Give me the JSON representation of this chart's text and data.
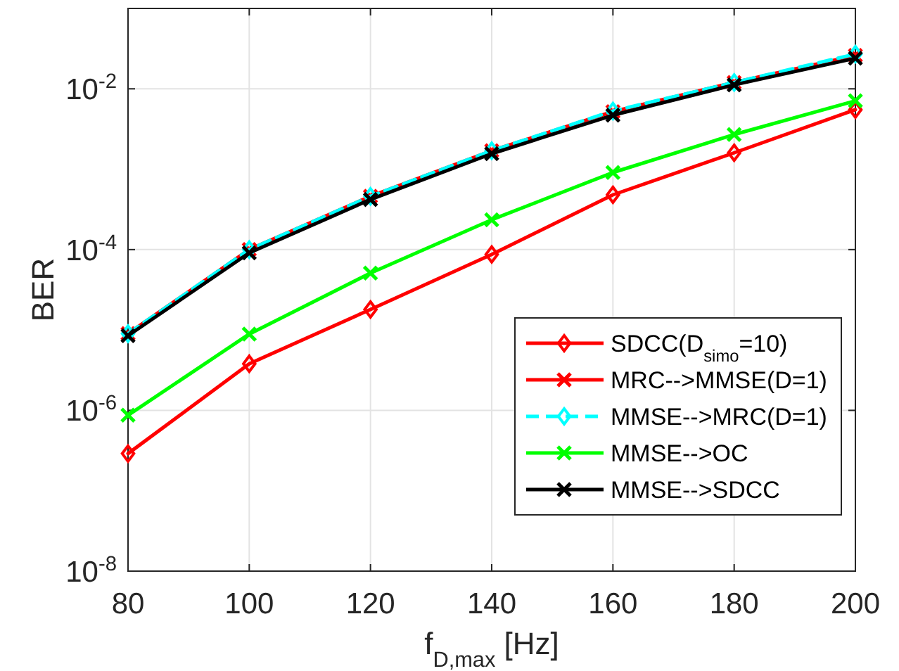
{
  "chart_data": {
    "type": "line",
    "xlabel": "f$_{D,max}$ [Hz]",
    "ylabel": "BER",
    "x": [
      80,
      100,
      120,
      140,
      160,
      180,
      200
    ],
    "xlim": [
      80,
      200
    ],
    "xticks": [
      80,
      100,
      120,
      140,
      160,
      180,
      200
    ],
    "ylim": [
      1e-08,
      0.1
    ],
    "yticks": [
      {
        "value": 1e-08,
        "label": "10$^{-8}$"
      },
      {
        "value": 1e-06,
        "label": "10$^{-6}$"
      },
      {
        "value": 0.0001,
        "label": "10$^{-4}$"
      },
      {
        "value": 0.01,
        "label": "10$^{-2}$"
      }
    ],
    "log": "y",
    "grid": true,
    "legend": "right",
    "series": [
      {
        "name": "SDCC(D$_{simo}$=10)",
        "color": "#ff0000",
        "marker": "diamond",
        "line_style": "solid",
        "values": [
          2.9e-07,
          3.8e-06,
          1.8e-05,
          8.7e-05,
          0.00048,
          0.0016,
          0.0055
        ]
      },
      {
        "name": "MRC-->MMSE(D=1)",
        "color": "#ff0000",
        "marker": "cross",
        "line_style": "solid",
        "values": [
          9e-06,
          0.0001,
          0.00046,
          0.0017,
          0.0052,
          0.012,
          0.026
        ]
      },
      {
        "name": "MMSE-->MRC(D=1)",
        "color": "#00ffff",
        "marker": "diamond",
        "line_style": "dashed",
        "values": [
          9e-06,
          0.0001,
          0.00046,
          0.0017,
          0.0053,
          0.012,
          0.027
        ]
      },
      {
        "name": "MMSE-->OC",
        "color": "#00ff00",
        "marker": "cross",
        "line_style": "solid",
        "values": [
          8.7e-07,
          8.9e-06,
          5.1e-05,
          0.000235,
          0.00091,
          0.0027,
          0.0071
        ]
      },
      {
        "name": "MMSE-->SDCC",
        "color": "#000000",
        "marker": "cross",
        "line_style": "solid",
        "values": [
          8.5e-06,
          9.1e-05,
          0.00042,
          0.00156,
          0.0047,
          0.0112,
          0.024
        ]
      }
    ]
  }
}
